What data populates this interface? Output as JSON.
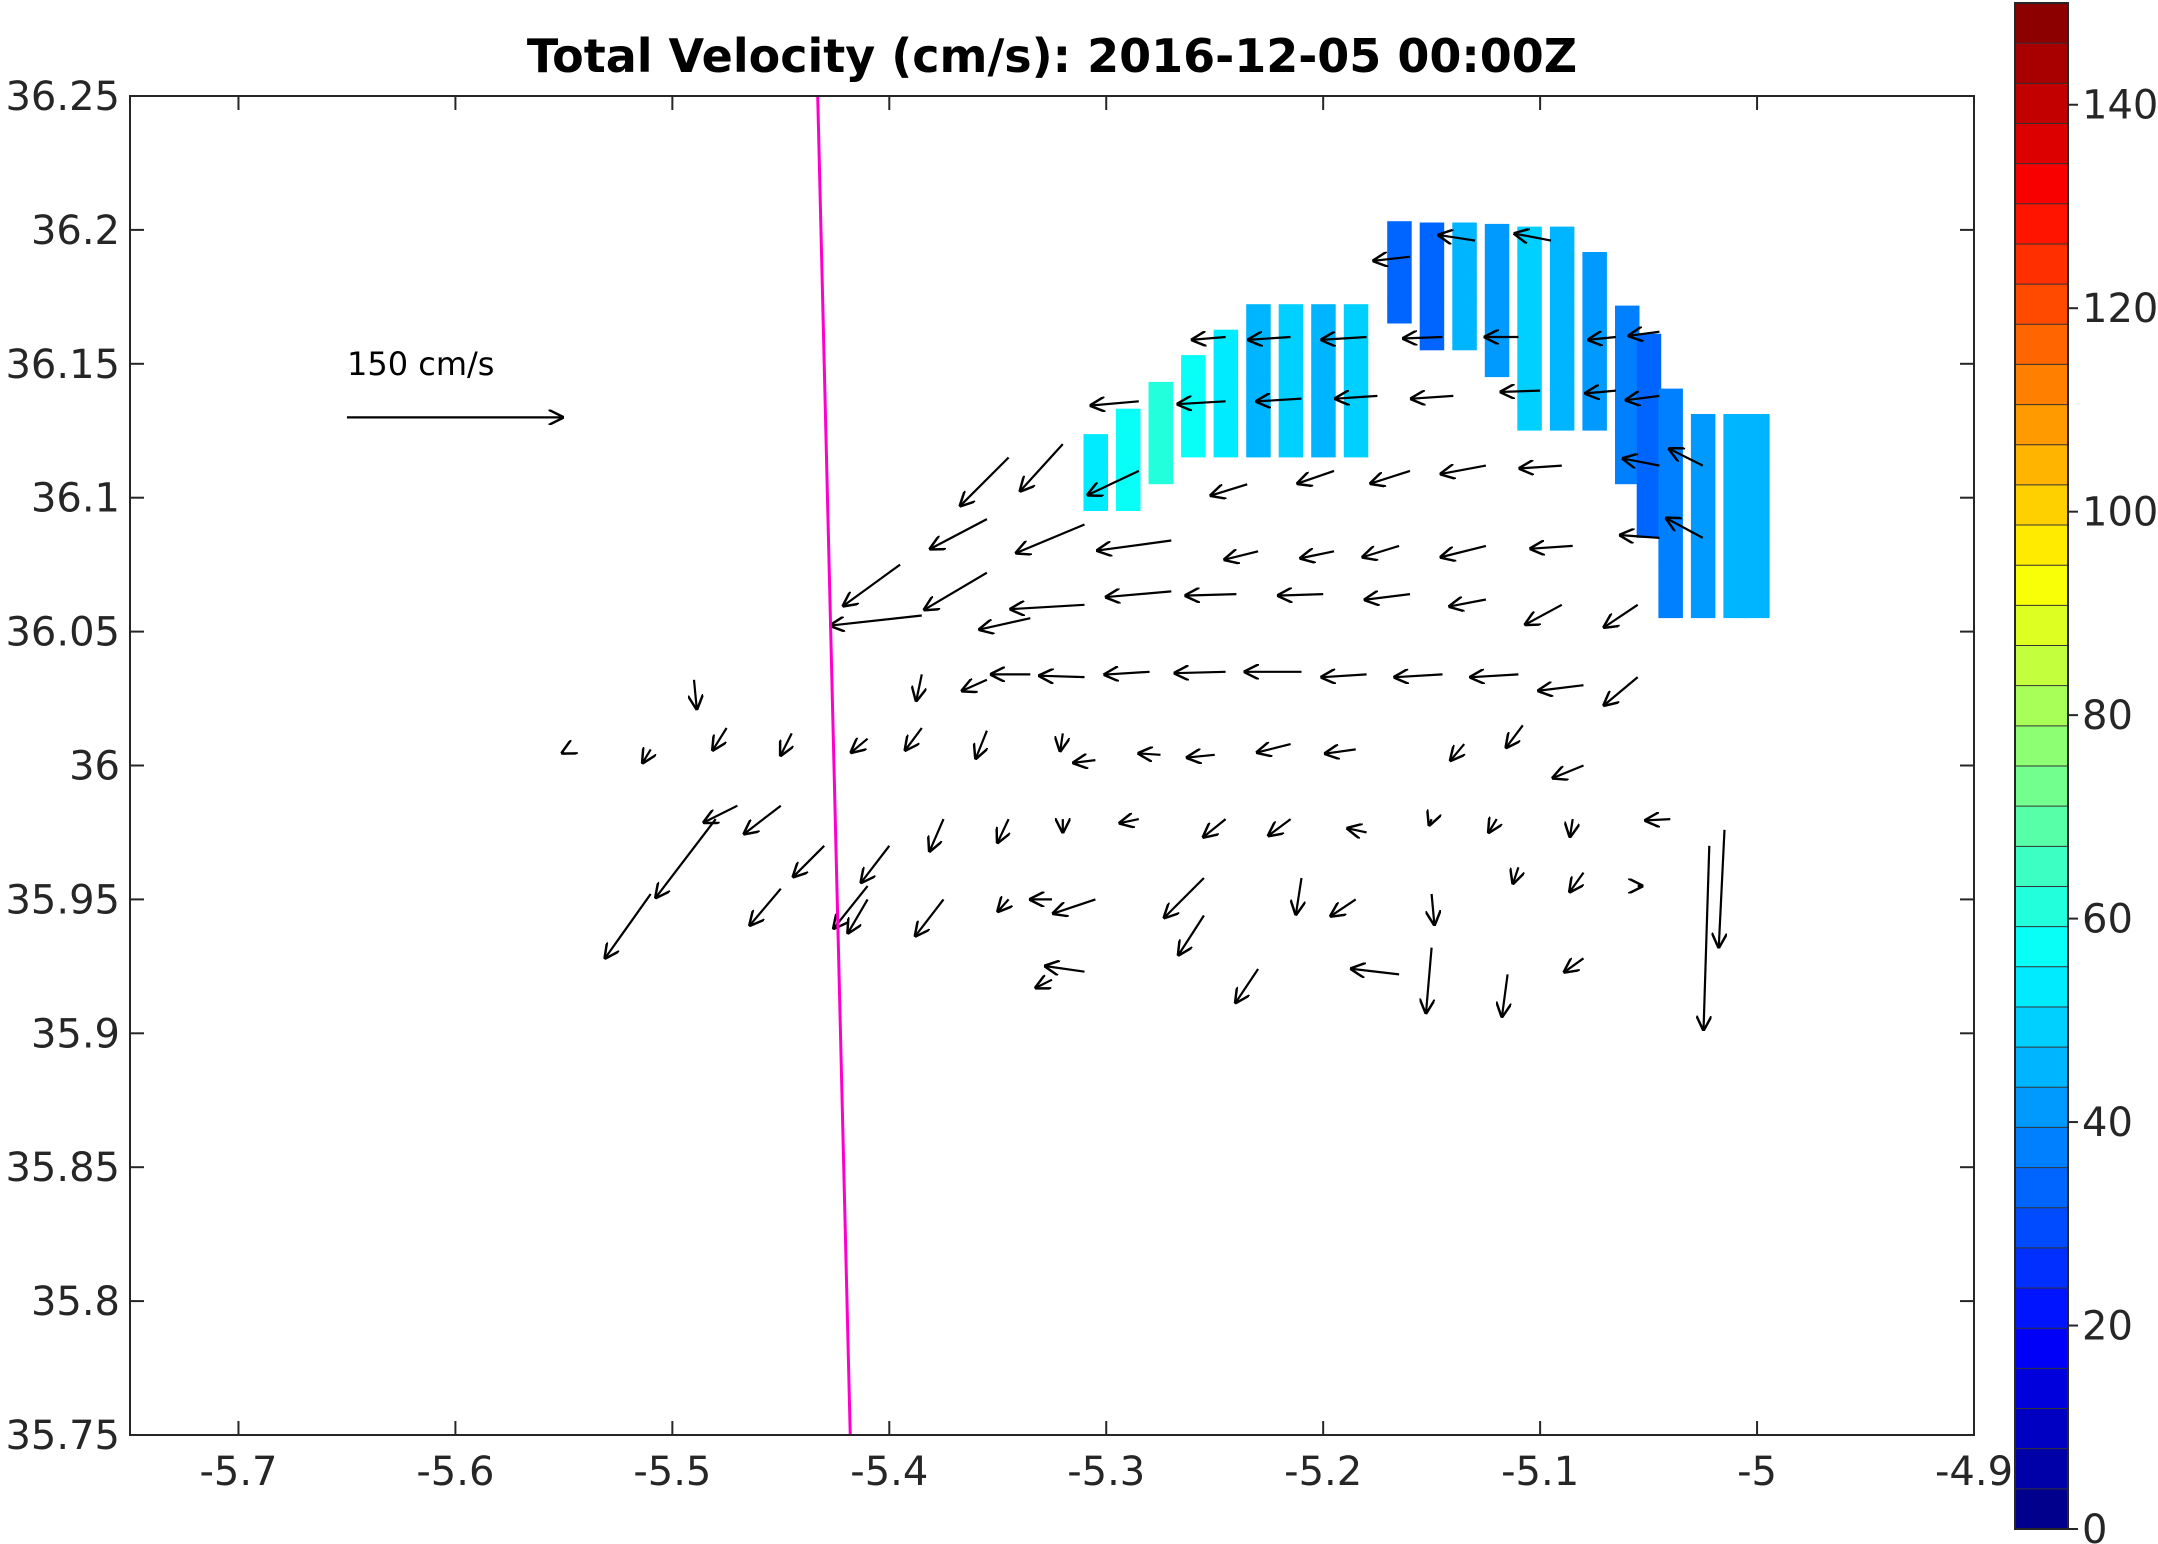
{
  "chart_data": {
    "type": "heatmap",
    "subtype": "surface-current-vector-field",
    "title": "Total Velocity (cm/s): 2016-12-05 00:00Z",
    "xlabel": "",
    "ylabel": "",
    "xlim": [
      -5.75,
      -4.9
    ],
    "ylim": [
      35.75,
      36.25
    ],
    "x_ticks": [
      -5.7,
      -5.6,
      -5.5,
      -5.4,
      -5.3,
      -5.2,
      -5.1,
      -5.0,
      -4.9
    ],
    "x_tick_labels": [
      "-5.7",
      "-5.6",
      "-5.5",
      "-5.4",
      "-5.3",
      "-5.2",
      "-5.1",
      "-5",
      "-4.9"
    ],
    "y_ticks": [
      35.75,
      35.8,
      35.85,
      35.9,
      35.95,
      36.0,
      36.05,
      36.1,
      36.15,
      36.2,
      36.25
    ],
    "y_tick_labels": [
      "35.75",
      "35.8",
      "35.85",
      "35.9",
      "35.95",
      "36",
      "36.05",
      "36.1",
      "36.15",
      "36.2",
      "36.25"
    ],
    "grid": false,
    "colorbar": {
      "range": [
        0,
        150
      ],
      "ticks": [
        0,
        20,
        40,
        60,
        80,
        100,
        120,
        140
      ],
      "tick_labels": [
        "0",
        "20",
        "40",
        "60",
        "80",
        "100",
        "120",
        "140"
      ],
      "colormap": "jet",
      "steps": 38
    },
    "reference_vector": {
      "label": "150 cm/s",
      "speed": 150,
      "lon": -5.65,
      "lat": 36.13
    },
    "section_line": {
      "color": "#ff00cc",
      "from": [
        -5.433,
        36.25
      ],
      "to": [
        -5.418,
        35.75
      ]
    },
    "cell_size": [
      0.011,
      0.0095
    ],
    "speed_cells": [
      [
        "-5.165",
        [
          [
            36.17,
            36.2,
            35
          ]
        ]
      ],
      [
        "-5.150",
        [
          [
            36.16,
            36.2,
            35
          ]
        ]
      ],
      [
        "-5.135",
        [
          [
            36.16,
            36.2,
            46
          ]
        ]
      ],
      [
        "-5.120",
        [
          [
            36.15,
            36.2,
            40
          ]
        ]
      ],
      [
        "-5.105",
        [
          [
            36.13,
            36.2,
            50
          ]
        ]
      ],
      [
        "-5.090",
        [
          [
            36.13,
            36.2,
            45
          ]
        ]
      ],
      [
        "-5.075",
        [
          [
            36.13,
            36.19,
            40
          ]
        ]
      ],
      [
        "-5.060",
        [
          [
            36.11,
            36.17,
            37
          ]
        ]
      ],
      [
        "-5.050",
        [
          [
            36.09,
            36.16,
            33
          ]
        ]
      ],
      [
        "-5.040",
        [
          [
            36.06,
            36.14,
            38
          ]
        ]
      ],
      [
        "-5.025",
        [
          [
            36.06,
            36.13,
            40
          ]
        ]
      ],
      [
        "-5.010",
        [
          [
            36.06,
            36.13,
            44
          ]
        ]
      ],
      [
        "-5.000",
        [
          [
            36.06,
            36.13,
            45
          ]
        ]
      ],
      [
        "-5.230",
        [
          [
            36.12,
            36.17,
            46
          ]
        ]
      ],
      [
        "-5.215",
        [
          [
            36.12,
            36.17,
            48
          ]
        ]
      ],
      [
        "-5.200",
        [
          [
            36.12,
            36.17,
            44
          ]
        ]
      ],
      [
        "-5.185",
        [
          [
            36.12,
            36.17,
            48
          ]
        ]
      ],
      [
        "-5.245",
        [
          [
            36.12,
            36.16,
            52
          ]
        ]
      ],
      [
        "-5.260",
        [
          [
            36.12,
            36.15,
            58
          ]
        ]
      ],
      [
        "-5.275",
        [
          [
            36.11,
            36.14,
            62
          ]
        ]
      ],
      [
        "-5.290",
        [
          [
            36.1,
            36.13,
            58
          ]
        ]
      ],
      [
        "-5.305",
        [
          [
            36.1,
            36.12,
            54
          ]
        ]
      ]
    ],
    "vectors": [
      [
        -5.16,
        36.19,
        -26,
        -3
      ],
      [
        -5.13,
        36.196,
        -26,
        4
      ],
      [
        -5.095,
        36.196,
        -26,
        5
      ],
      [
        -5.065,
        36.16,
        -20,
        -2
      ],
      [
        -5.11,
        36.16,
        -24,
        0
      ],
      [
        -5.145,
        36.16,
        -28,
        -1
      ],
      [
        -5.18,
        36.16,
        -32,
        -2
      ],
      [
        -5.215,
        36.16,
        -30,
        -2
      ],
      [
        -5.245,
        36.16,
        -24,
        -2
      ],
      [
        -5.045,
        36.162,
        -22,
        -3
      ],
      [
        -5.065,
        36.14,
        -22,
        -2
      ],
      [
        -5.1,
        36.14,
        -28,
        -1
      ],
      [
        -5.14,
        36.138,
        -30,
        -2
      ],
      [
        -5.175,
        36.138,
        -30,
        -2
      ],
      [
        -5.21,
        36.137,
        -32,
        -2
      ],
      [
        -5.245,
        36.136,
        -34,
        -2
      ],
      [
        -5.285,
        36.136,
        -34,
        -3
      ],
      [
        -5.045,
        36.138,
        -24,
        -3
      ],
      [
        -5.025,
        36.112,
        -24,
        12
      ],
      [
        -5.045,
        36.112,
        -26,
        5
      ],
      [
        -5.09,
        36.112,
        -30,
        -2
      ],
      [
        -5.125,
        36.112,
        -32,
        -6
      ],
      [
        -5.16,
        36.11,
        -28,
        -9
      ],
      [
        -5.195,
        36.11,
        -26,
        -9
      ],
      [
        -5.235,
        36.105,
        -26,
        -8
      ],
      [
        -5.285,
        36.11,
        -36,
        -17
      ],
      [
        -5.32,
        36.12,
        -30,
        -33
      ],
      [
        -5.345,
        36.115,
        -34,
        -34
      ],
      [
        -5.355,
        36.092,
        -40,
        -21
      ],
      [
        -5.025,
        36.085,
        -26,
        14
      ],
      [
        -5.045,
        36.085,
        -28,
        2
      ],
      [
        -5.085,
        36.082,
        -30,
        -2
      ],
      [
        -5.125,
        36.082,
        -32,
        -8
      ],
      [
        -5.165,
        36.082,
        -26,
        -8
      ],
      [
        -5.195,
        36.08,
        -24,
        -5
      ],
      [
        -5.23,
        36.08,
        -24,
        -6
      ],
      [
        -5.27,
        36.084,
        -52,
        -7
      ],
      [
        -5.31,
        36.09,
        -48,
        -20
      ],
      [
        -5.355,
        36.072,
        -44,
        -26
      ],
      [
        -5.055,
        36.06,
        -24,
        -16
      ],
      [
        -5.09,
        36.06,
        -26,
        -14
      ],
      [
        -5.125,
        36.062,
        -26,
        -5
      ],
      [
        -5.16,
        36.064,
        -32,
        -4
      ],
      [
        -5.2,
        36.064,
        -32,
        -1
      ],
      [
        -5.24,
        36.064,
        -36,
        -1
      ],
      [
        -5.27,
        36.065,
        -46,
        -4
      ],
      [
        -5.31,
        36.06,
        -52,
        -3
      ],
      [
        -5.335,
        36.055,
        -36,
        -8
      ],
      [
        -5.385,
        36.056,
        -64,
        -7
      ],
      [
        -5.395,
        36.075,
        -40,
        -29
      ],
      [
        -5.055,
        36.033,
        -24,
        -20
      ],
      [
        -5.08,
        36.03,
        -32,
        -4
      ],
      [
        -5.11,
        36.034,
        -34,
        -2
      ],
      [
        -5.145,
        36.034,
        -34,
        -2
      ],
      [
        -5.18,
        36.034,
        -32,
        -2
      ],
      [
        -5.21,
        36.035,
        -40,
        0
      ],
      [
        -5.245,
        36.035,
        -36,
        -1
      ],
      [
        -5.28,
        36.035,
        -32,
        -2
      ],
      [
        -5.31,
        36.033,
        -32,
        1
      ],
      [
        -5.335,
        36.034,
        -28,
        0
      ],
      [
        -5.355,
        36.032,
        -18,
        -8
      ],
      [
        -5.385,
        36.034,
        -4,
        -19
      ],
      [
        -5.49,
        36.032,
        2,
        -21
      ],
      [
        -5.08,
        36.0,
        -22,
        -9
      ],
      [
        -5.108,
        36.015,
        -12,
        -16
      ],
      [
        -5.135,
        36.008,
        -10,
        -12
      ],
      [
        -5.185,
        36.006,
        -22,
        -3
      ],
      [
        -5.215,
        36.008,
        -24,
        -6
      ],
      [
        -5.25,
        36.004,
        -20,
        -2
      ],
      [
        -5.275,
        36.004,
        -16,
        1
      ],
      [
        -5.305,
        36.002,
        -16,
        -2
      ],
      [
        -5.32,
        36.012,
        -2,
        -13
      ],
      [
        -5.355,
        36.013,
        -8,
        -20
      ],
      [
        -5.385,
        36.014,
        -12,
        -16
      ],
      [
        -5.41,
        36.01,
        -12,
        -10
      ],
      [
        -5.445,
        36.012,
        -8,
        -16
      ],
      [
        -5.475,
        36.014,
        -10,
        -16
      ],
      [
        -5.51,
        36.006,
        -6,
        -10
      ],
      [
        -5.55,
        36.005,
        -2,
        -1
      ],
      [
        -5.04,
        35.98,
        -18,
        -1
      ],
      [
        -5.085,
        35.98,
        -2,
        -13
      ],
      [
        -5.12,
        35.98,
        -6,
        -10
      ],
      [
        -5.15,
        35.98,
        -2,
        -5
      ],
      [
        -5.18,
        35.975,
        -14,
        3
      ],
      [
        -5.215,
        35.98,
        -16,
        -12
      ],
      [
        -5.245,
        35.98,
        -16,
        -13
      ],
      [
        -5.285,
        35.98,
        -14,
        -3
      ],
      [
        -5.32,
        35.98,
        0,
        -10
      ],
      [
        -5.345,
        35.98,
        -8,
        -17
      ],
      [
        -5.375,
        35.98,
        -10,
        -23
      ],
      [
        -5.4,
        35.97,
        -20,
        -26
      ],
      [
        -5.43,
        35.97,
        -22,
        -22
      ],
      [
        -5.45,
        35.985,
        -26,
        -20
      ],
      [
        -5.47,
        35.985,
        -24,
        -12
      ],
      [
        -5.48,
        35.98,
        -42,
        -55
      ],
      [
        -5.41,
        35.95,
        -14,
        -24
      ],
      [
        -5.08,
        35.96,
        -10,
        -14
      ],
      [
        -5.11,
        35.962,
        -4,
        -12
      ],
      [
        -5.185,
        35.95,
        -18,
        -12
      ],
      [
        -5.21,
        35.958,
        -4,
        -26
      ],
      [
        -5.255,
        35.958,
        -28,
        -28
      ],
      [
        -5.305,
        35.95,
        -30,
        -10
      ],
      [
        -5.325,
        35.95,
        -16,
        0
      ],
      [
        -5.345,
        35.95,
        -8,
        -9
      ],
      [
        -5.375,
        35.95,
        -20,
        -26
      ],
      [
        -5.41,
        35.955,
        -24,
        -30
      ],
      [
        -5.45,
        35.954,
        -22,
        -26
      ],
      [
        -5.51,
        35.952,
        -32,
        -45
      ],
      [
        -5.015,
        35.976,
        -4,
        -82
      ],
      [
        -5.022,
        35.97,
        -4,
        -128
      ],
      [
        -5.055,
        35.955,
        4,
        0
      ],
      [
        -5.08,
        35.928,
        -14,
        -10
      ],
      [
        -5.115,
        35.922,
        -4,
        -30
      ],
      [
        -5.15,
        35.952,
        2,
        -22
      ],
      [
        -5.15,
        35.932,
        -4,
        -46
      ],
      [
        -5.23,
        35.924,
        -16,
        -24
      ],
      [
        -5.255,
        35.944,
        -18,
        -28
      ],
      [
        -5.31,
        35.923,
        -28,
        4
      ],
      [
        -5.325,
        35.92,
        -12,
        -6
      ],
      [
        -5.165,
        35.922,
        -34,
        4
      ]
    ]
  }
}
